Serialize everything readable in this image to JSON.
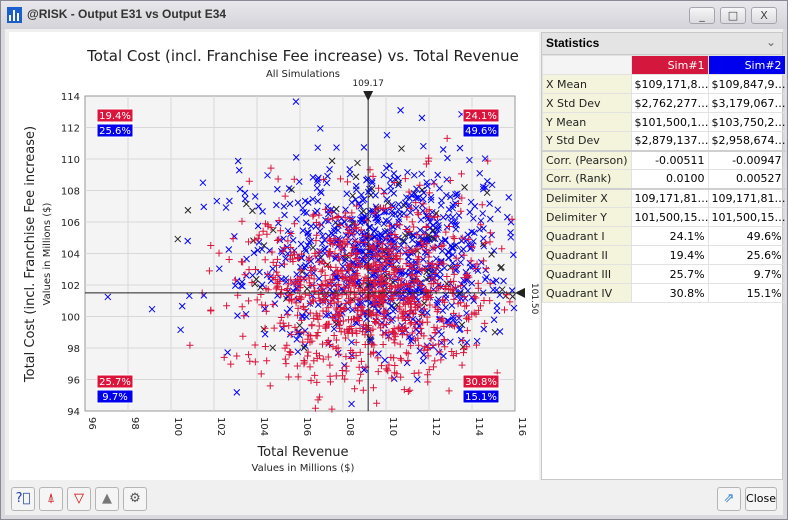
{
  "window": {
    "title": "@RISK - Output E31 vs Output E34",
    "minimize": "_",
    "maximize": "□",
    "close": "X"
  },
  "chart_data": {
    "type": "scatter",
    "title": "Total Cost (incl. Franchise Fee increase) vs. Total Revenue",
    "subtitle": "All Simulations",
    "xlabel": "Total Revenue",
    "xunits": "Values in Millions ($)",
    "ylabel": "Total Cost (incl. Franchise Fee increase)",
    "yunits": "Values in Millions ($)",
    "xlim": [
      96,
      116
    ],
    "ylim": [
      94,
      114
    ],
    "xticks": [
      "96",
      "98",
      "100",
      "102",
      "104",
      "106",
      "108",
      "110",
      "112",
      "114",
      "116"
    ],
    "yticks": [
      "94",
      "96",
      "98",
      "100",
      "102",
      "104",
      "106",
      "108",
      "110",
      "112",
      "114"
    ],
    "grid": true,
    "delimiter_x": 109.17,
    "delimiter_x_label": "109.17",
    "delimiter_y": 101.5,
    "delimiter_y_label": "101.50",
    "series": [
      {
        "name": "Sim#1",
        "color": "#dc143c",
        "marker": "+",
        "x_mean": 109.17,
        "x_std": 2.76,
        "y_mean": 101.5,
        "y_std": 2.88
      },
      {
        "name": "Sim#2",
        "color": "#0000ff",
        "marker": "x",
        "x_mean": 109.85,
        "x_std": 3.18,
        "y_mean": 103.75,
        "y_std": 2.96
      }
    ],
    "quadrants": {
      "I": {
        "sim1": "24.1%",
        "sim2": "49.6%"
      },
      "II": {
        "sim1": "19.4%",
        "sim2": "25.6%"
      },
      "III": {
        "sim1": "25.7%",
        "sim2": "9.7%"
      },
      "IV": {
        "sim1": "30.8%",
        "sim2": "15.1%"
      }
    }
  },
  "statistics": {
    "header": "Statistics",
    "columns": [
      "Sim#1",
      "Sim#2"
    ],
    "col_colors": [
      "#dc143c",
      "#0000ee"
    ],
    "rows": [
      {
        "label": "X Mean",
        "v": [
          "$109,171,8…",
          "$109,847,9…"
        ]
      },
      {
        "label": "X Std Dev",
        "v": [
          "$2,762,277…",
          "$3,179,067…"
        ]
      },
      {
        "label": "Y Mean",
        "v": [
          "$101,500,1…",
          "$103,750,2…"
        ]
      },
      {
        "label": "Y Std Dev",
        "v": [
          "$2,879,137…",
          "$2,958,674…"
        ]
      },
      {
        "label": "Corr. (Pearson)",
        "v": [
          "-0.00511",
          "-0.00947"
        ]
      },
      {
        "label": "Corr. (Rank)",
        "v": [
          "0.0100",
          "0.00527"
        ]
      },
      {
        "label": "Delimiter X",
        "v": [
          "109,171,81…",
          "109,171,81…"
        ]
      },
      {
        "label": "Delimiter Y",
        "v": [
          "101,500,15…",
          "101,500,15…"
        ]
      },
      {
        "label": "Quadrant I",
        "v": [
          "24.1%",
          "49.6%"
        ]
      },
      {
        "label": "Quadrant II",
        "v": [
          "19.4%",
          "25.6%"
        ]
      },
      {
        "label": "Quadrant III",
        "v": [
          "25.7%",
          "9.7%"
        ]
      },
      {
        "label": "Quadrant IV",
        "v": [
          "30.8%",
          "15.1%"
        ]
      }
    ]
  },
  "toolbar": {
    "close_label": "Close",
    "icons": [
      "help-icon",
      "delimiter-icon",
      "filter-icon",
      "distribution-icon",
      "settings-icon",
      "export-icon"
    ]
  }
}
